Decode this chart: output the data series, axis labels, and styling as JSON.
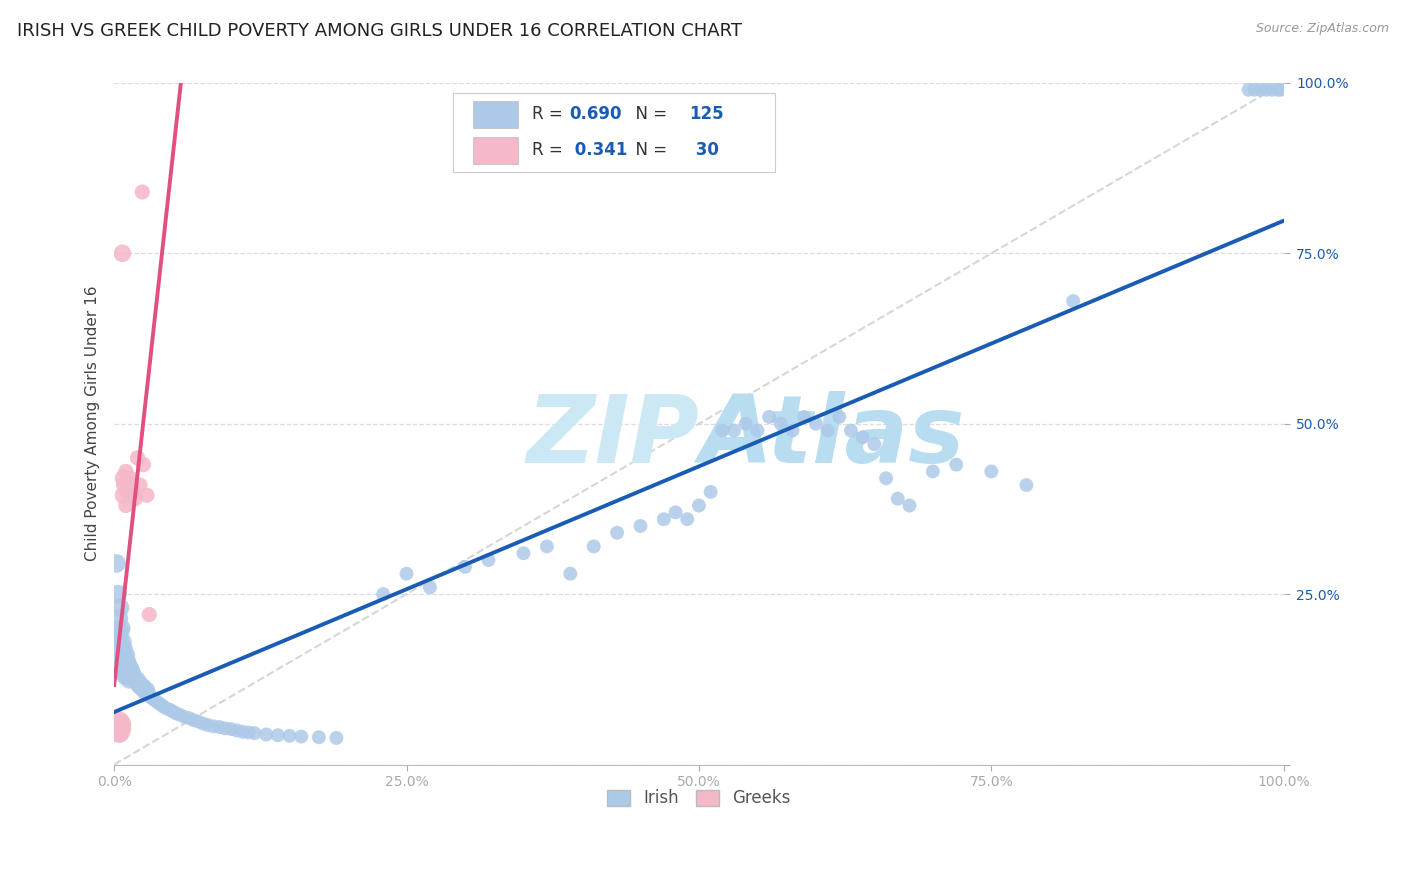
{
  "title": "IRISH VS GREEK CHILD POVERTY AMONG GIRLS UNDER 16 CORRELATION CHART",
  "source": "Source: ZipAtlas.com",
  "ylabel": "Child Poverty Among Girls Under 16",
  "irish_R": 0.69,
  "irish_N": 125,
  "greek_R": 0.341,
  "greek_N": 30,
  "irish_color": "#adc9e8",
  "greek_color": "#f5b8c8",
  "irish_line_color": "#1a5cb4",
  "greek_line_color": "#e05080",
  "diag_line_color": "#cccccc",
  "background_color": "#ffffff",
  "grid_color": "#dddddd",
  "watermark_color": "#cde8f5",
  "title_fontsize": 13,
  "axis_label_fontsize": 11,
  "tick_fontsize": 10
}
